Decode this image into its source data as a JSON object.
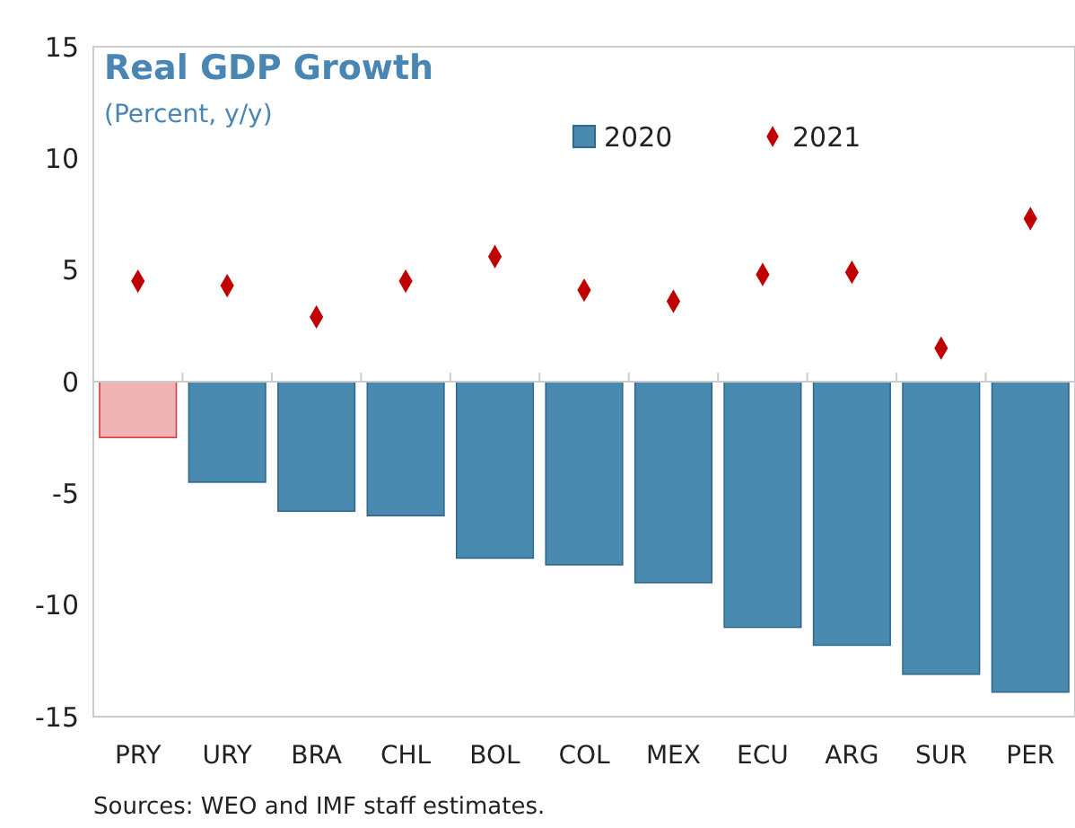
{
  "chart_data": {
    "type": "bar",
    "title": "Real GDP Growth",
    "subtitle": "(Percent, y/y)",
    "categories": [
      "PRY",
      "URY",
      "BRA",
      "CHL",
      "BOL",
      "COL",
      "MEX",
      "ECU",
      "ARG",
      "SUR",
      "PER"
    ],
    "series": [
      {
        "name": "2020",
        "color": "#4a8ab0",
        "colors": [
          "#f0b4b4",
          "#4a8ab0",
          "#4a8ab0",
          "#4a8ab0",
          "#4a8ab0",
          "#4a8ab0",
          "#4a8ab0",
          "#4a8ab0",
          "#4a8ab0",
          "#4a8ab0",
          "#4a8ab0"
        ],
        "values": [
          -2.5,
          -4.5,
          -5.8,
          -6.0,
          -7.9,
          -8.2,
          -9.0,
          -11.0,
          -11.8,
          -13.1,
          -13.9
        ]
      },
      {
        "name": "2021",
        "type": "scatter",
        "color": "#c00000",
        "marker": "diamond",
        "values": [
          4.5,
          4.3,
          2.9,
          4.5,
          5.6,
          4.1,
          3.6,
          4.8,
          4.9,
          1.5,
          7.3
        ]
      }
    ],
    "ylim": [
      -15,
      15
    ],
    "yticks": [
      -15,
      -10,
      -5,
      0,
      5,
      10,
      15
    ],
    "legend": "top",
    "annotations": [
      "Sources: WEO and IMF staff estimates."
    ]
  }
}
